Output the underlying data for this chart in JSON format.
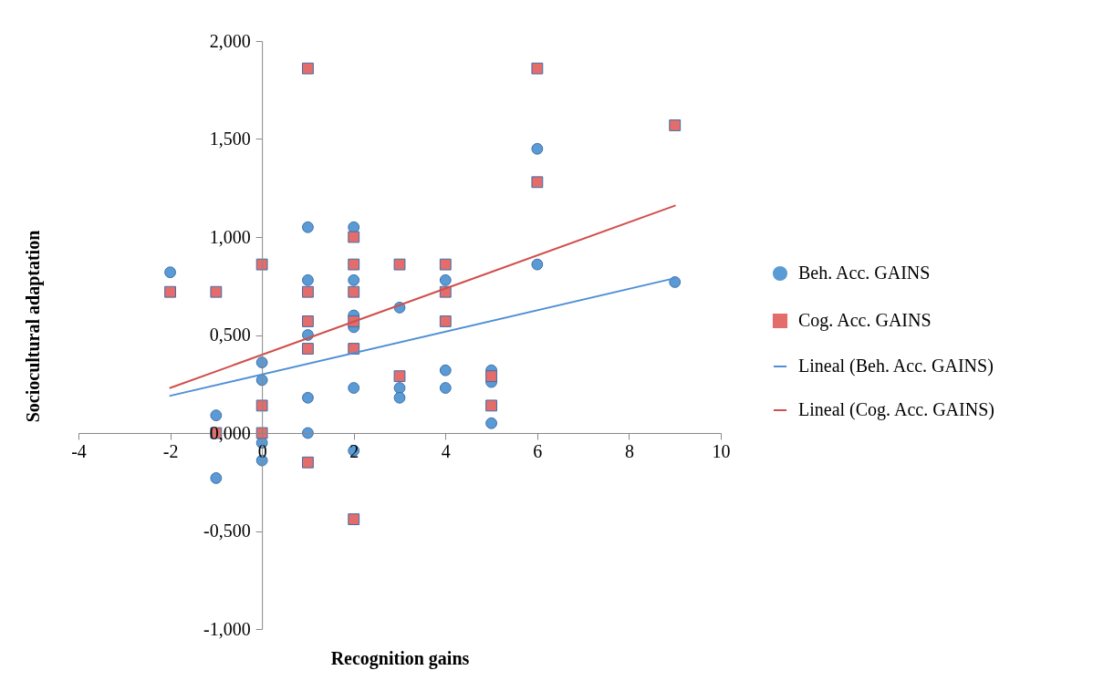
{
  "chart_data": {
    "type": "scatter",
    "xlabel": "Recognition gains",
    "ylabel": "Sociocultural adaptation",
    "xlim": [
      -4,
      10
    ],
    "ylim": [
      -1,
      2
    ],
    "xticks": [
      -4,
      -2,
      0,
      2,
      4,
      6,
      8,
      10
    ],
    "yticks": [
      {
        "value": -1,
        "label": "-1,000"
      },
      {
        "value": -0.5,
        "label": "-0,500"
      },
      {
        "value": 0,
        "label": "0,000"
      },
      {
        "value": 0.5,
        "label": "0,500"
      },
      {
        "value": 1,
        "label": "1,000"
      },
      {
        "value": 1.5,
        "label": "1,500"
      },
      {
        "value": 2,
        "label": "2,000"
      }
    ],
    "grid": false,
    "legend": "right",
    "series": [
      {
        "name": "Beh. Acc. GAINS",
        "marker": "circle",
        "color": "#5b9bd5",
        "x": [
          -2,
          -1,
          -1,
          0,
          0,
          0,
          0,
          1,
          1,
          1,
          1,
          1,
          2,
          2,
          2,
          2,
          2,
          2,
          3,
          3,
          3,
          4,
          4,
          4,
          5,
          5,
          5,
          6,
          6,
          9
        ],
        "values": [
          0.82,
          0.09,
          -0.23,
          0.36,
          0.27,
          -0.05,
          -0.14,
          1.05,
          0.78,
          0.5,
          0.18,
          0,
          1.05,
          0.78,
          0.6,
          0.54,
          0.23,
          -0.09,
          0.64,
          0.23,
          0.18,
          0.78,
          0.32,
          0.23,
          0.32,
          0.26,
          0.05,
          1.45,
          0.86,
          0.77
        ]
      },
      {
        "name": "Cog. Acc. GAINS",
        "marker": "square",
        "color": "#e46c6a",
        "x": [
          -2,
          -1,
          -1,
          0,
          0,
          0,
          1,
          1,
          1,
          1,
          1,
          2,
          2,
          2,
          2,
          2,
          2,
          3,
          3,
          4,
          4,
          4,
          5,
          5,
          6,
          6,
          9
        ],
        "values": [
          0.72,
          0.72,
          0,
          0.86,
          0.14,
          0,
          1.86,
          0.72,
          0.57,
          0.43,
          -0.15,
          1,
          0.86,
          0.72,
          0.57,
          0.43,
          -0.44,
          0.86,
          0.29,
          0.86,
          0.72,
          0.57,
          0.29,
          0.14,
          1.86,
          1.28,
          1.57
        ]
      },
      {
        "name": "Lineal (Beh. Acc. GAINS)",
        "type": "line",
        "marker": "none",
        "color": "#4f8fd6",
        "x": [
          -2,
          9
        ],
        "values": [
          0.19,
          0.79
        ]
      },
      {
        "name": "Lineal (Cog. Acc. GAINS)",
        "type": "line",
        "marker": "none",
        "color": "#d0504c",
        "x": [
          -2,
          9
        ],
        "values": [
          0.23,
          1.16
        ]
      }
    ]
  }
}
